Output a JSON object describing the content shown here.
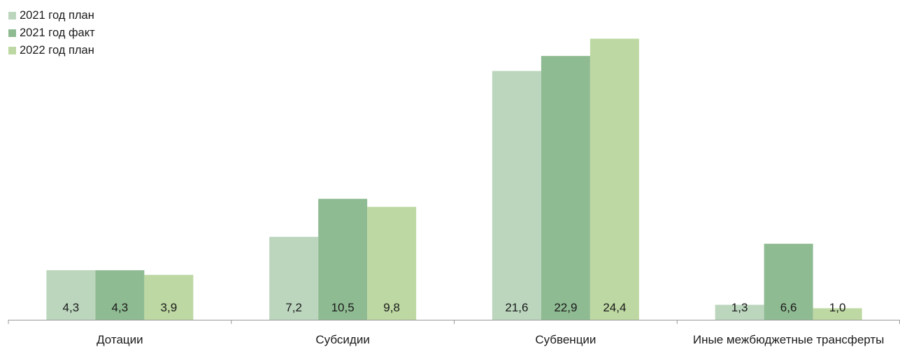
{
  "chart_data": {
    "type": "bar",
    "title": "",
    "xlabel": "",
    "ylabel": "",
    "categories": [
      "Дотации",
      "Субсидии",
      "Субвенции",
      "Иные межбюджетные трансферты"
    ],
    "series": [
      {
        "name": "2021 год  план",
        "color": "#bcd6be",
        "values": [
          4.3,
          7.2,
          21.6,
          1.3
        ],
        "labels": [
          "4,3",
          "7,2",
          "21,6",
          "1,3"
        ]
      },
      {
        "name": "2021 год факт",
        "color": "#8fbb92",
        "values": [
          4.3,
          10.5,
          22.9,
          6.6
        ],
        "labels": [
          "4,3",
          "10,5",
          "22,9",
          "6,6"
        ]
      },
      {
        "name": "2022 год план",
        "color": "#bdd8a2",
        "values": [
          3.9,
          9.8,
          24.4,
          1.0
        ],
        "labels": [
          "3,9",
          "9,8",
          "24,4",
          "1,0"
        ]
      }
    ],
    "ylim": [
      0,
      25
    ],
    "grid": false,
    "legend_position": "top-left"
  }
}
